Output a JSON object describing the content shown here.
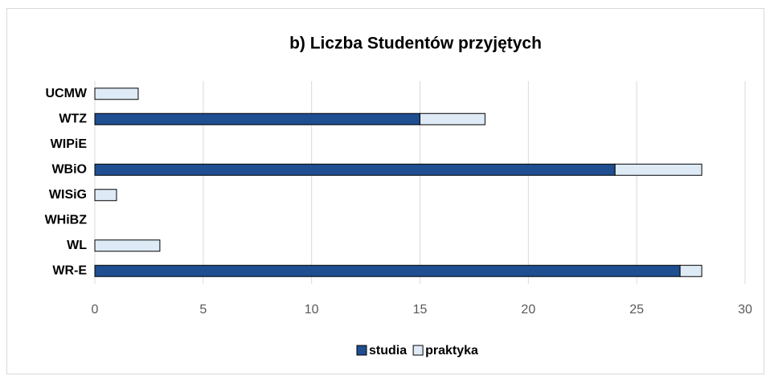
{
  "chart_data": {
    "type": "stacked-barh",
    "title": "b) Liczba Studentów przyjętych",
    "categories": [
      "UCMW",
      "WTZ",
      "WIPiE",
      "WBiO",
      "WISiG",
      "WHiBZ",
      "WL",
      "WR-E"
    ],
    "series": [
      {
        "name": "studia",
        "color": "#1f4e91",
        "values": [
          0,
          15,
          0,
          24,
          0,
          0,
          0,
          27
        ]
      },
      {
        "name": "praktyka",
        "color": "#deebf7",
        "values": [
          2,
          3,
          0,
          4,
          1,
          0,
          3,
          1
        ]
      }
    ],
    "xlim": [
      0,
      30
    ],
    "xticks": [
      0,
      5,
      10,
      15,
      20,
      25,
      30
    ],
    "grid": true,
    "legend": "bottom"
  }
}
